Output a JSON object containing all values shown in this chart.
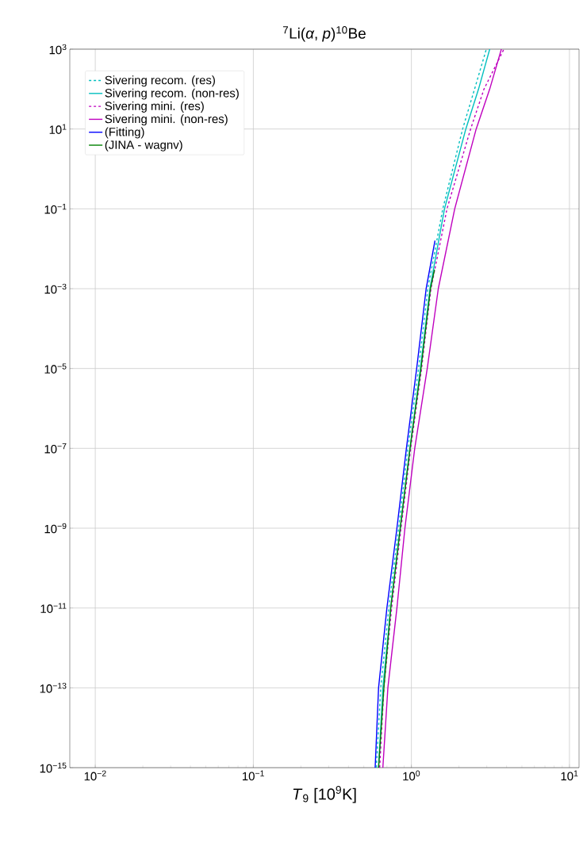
{
  "chart_data": {
    "type": "line",
    "title": "$^{7}$Li(*α*, *p*)$^{10}$Be",
    "xlabel": "*T*$_{9}$ [10$^{9}$K]",
    "log": "xy",
    "grid": true,
    "legend": "top left",
    "xlim": [
      0.0069,
      11.5
    ],
    "ylim": [
      1e-15,
      1000
    ],
    "xticks": [
      {
        "value": 0.01,
        "label": "10$^{−2}$"
      },
      {
        "value": 0.1,
        "label": "10$^{−1}$"
      },
      {
        "value": 1,
        "label": "10$^{0}$"
      },
      {
        "value": 10,
        "label": "10$^{1}$"
      }
    ],
    "yticks": [
      {
        "value": 1e-15,
        "label": "10$^{−15}$"
      },
      {
        "value": 1e-13,
        "label": "10$^{−13}$"
      },
      {
        "value": 1e-11,
        "label": "10$^{−11}$"
      },
      {
        "value": 1e-09,
        "label": "10$^{−9}$"
      },
      {
        "value": 1e-07,
        "label": "10$^{−7}$"
      },
      {
        "value": 1e-05,
        "label": "10$^{−5}$"
      },
      {
        "value": 0.001,
        "label": "10$^{−3}$"
      },
      {
        "value": 0.1,
        "label": "10$^{−1}$"
      },
      {
        "value": 10,
        "label": "10$^{1}$"
      },
      {
        "value": 1000,
        "label": "10$^{3}$"
      }
    ],
    "series": [
      {
        "name": "Sivering recom. (res)",
        "color": "#00bfbf",
        "line_style": "dashed",
        "x": [
          0.6,
          0.64,
          0.72,
          0.83,
          0.95,
          1.11,
          1.27,
          1.58,
          2.11,
          2.51,
          2.98
        ],
        "values": [
          1e-15,
          1e-13,
          1e-11,
          1e-09,
          1e-07,
          1e-05,
          0.001,
          0.1,
          10,
          100,
          1000
        ]
      },
      {
        "name": "Sivering recom. (non-res)",
        "color": "#00bfbf",
        "line_style": "solid",
        "x": [
          0.62,
          0.66,
          0.74,
          0.85,
          0.98,
          1.14,
          1.31,
          1.62,
          2.21,
          2.66,
          3.13
        ],
        "values": [
          1e-15,
          1e-13,
          1e-11,
          1e-09,
          1e-07,
          1e-05,
          0.001,
          0.1,
          10,
          100,
          1000
        ]
      },
      {
        "name": "Sivering mini. (res)",
        "color": "#bf00bf",
        "line_style": "dashed",
        "x": [
          0.63,
          0.67,
          0.75,
          0.86,
          0.99,
          1.16,
          1.33,
          1.68,
          2.37,
          2.88,
          3.85
        ],
        "values": [
          1e-15,
          1e-13,
          1e-11,
          1e-09,
          1e-07,
          1e-05,
          0.001,
          0.1,
          10,
          100,
          1000
        ]
      },
      {
        "name": "Sivering mini. (non-res)",
        "color": "#bf00bf",
        "line_style": "solid",
        "x": [
          0.66,
          0.71,
          0.81,
          0.91,
          1.05,
          1.26,
          1.48,
          1.88,
          2.57,
          3.13,
          3.71
        ],
        "values": [
          1e-15,
          1e-13,
          1e-11,
          1e-09,
          1e-07,
          1e-05,
          0.001,
          0.1,
          10,
          100,
          1000
        ]
      },
      {
        "name": "(Fitting)",
        "color": "#0000ff",
        "line_style": "solid",
        "x": [
          0.59,
          0.62,
          0.7,
          0.81,
          0.93,
          1.08,
          1.24,
          1.41
        ],
        "values": [
          1e-15,
          1e-13,
          1e-11,
          1e-09,
          1e-07,
          1e-05,
          0.001,
          0.016
        ]
      },
      {
        "name": "(JINA - wagnv)",
        "color": "#008000",
        "line_style": "solid",
        "x": [
          0.62,
          0.67,
          0.74,
          0.85,
          0.98,
          1.15,
          1.32,
          1.4
        ],
        "values": [
          1e-15,
          1e-13,
          1e-11,
          1e-09,
          1e-07,
          1e-05,
          0.001,
          0.003
        ]
      }
    ]
  }
}
